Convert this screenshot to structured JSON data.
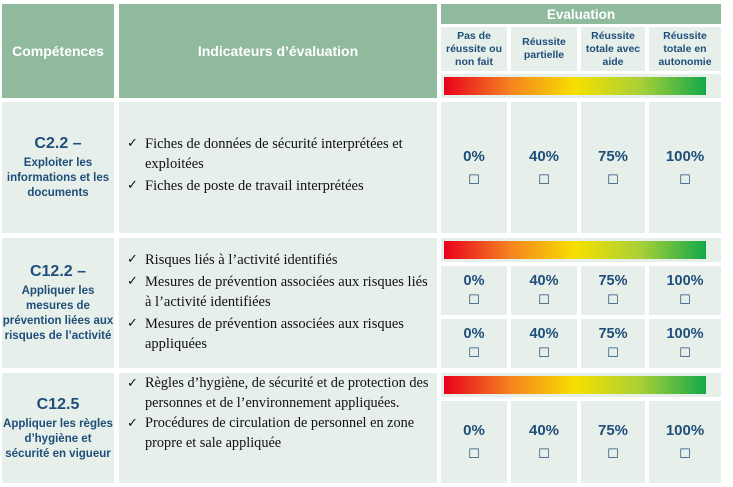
{
  "header": {
    "competences": "Compétences",
    "indicateurs": "Indicateurs d’évaluation",
    "evaluation": "Evaluation",
    "levels": [
      "Pas de réussite ou non fait",
      "Réussite partielle",
      "Réussite totale avec aide",
      "Réussite totale en autonomie"
    ]
  },
  "checkbox_glyph": "☐",
  "check_glyph": "✓",
  "rows": [
    {
      "code": "C2.2 –",
      "title": "Exploiter les informations et les documents",
      "indicators": [
        "Fiches de données de sécurité interprétées et exploitées",
        "Fiches de poste de travail interprétées"
      ],
      "scores": [
        "0%",
        "40%",
        "75%",
        "100%"
      ]
    },
    {
      "code": "C12.2 –",
      "title": "Appliquer les mesures de prévention liées aux risques de l’activité",
      "indicators": [
        "Risques liés à l’activité identifiés",
        "Mesures de prévention associées aux risques liés à l’activité identifiées",
        "Mesures de prévention associées aux risques appliquées"
      ],
      "scores_a": [
        "0%",
        "40%",
        "75%",
        "100%"
      ],
      "scores_b": [
        "0%",
        "40%",
        "75%",
        "100%"
      ]
    },
    {
      "code": "C12.5",
      "title": "Appliquer les règles d’hygiène et sécurité en vigueur",
      "indicators": [
        "Règles d’hygiène, de sécurité et de protection des personnes et de l’environnement appliquées.",
        "Procédures de circulation de personnel en zone propre et sale appliquée"
      ],
      "scores": [
        "0%",
        "40%",
        "75%",
        "100%"
      ]
    }
  ]
}
